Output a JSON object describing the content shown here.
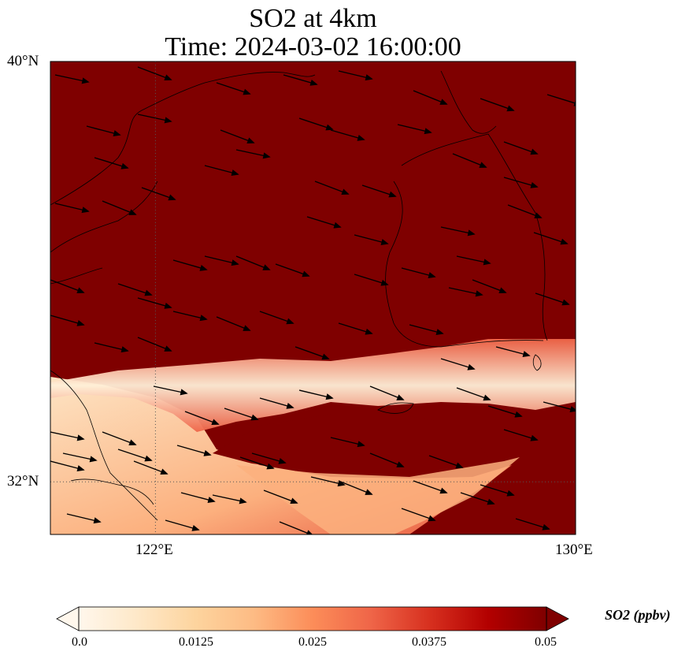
{
  "title": {
    "line1": "SO2 at 4km",
    "line2": "Time: 2024-03-02 16:00:00"
  },
  "map": {
    "extent": {
      "lon_min": 120.0,
      "lon_max": 130.0,
      "lat_min": 31.0,
      "lat_max": 40.0
    },
    "lat_ticks": [
      {
        "value": 40,
        "label": "40°N"
      },
      {
        "value": 32,
        "label": "32°N"
      }
    ],
    "lon_ticks": [
      {
        "value": 122,
        "label": "122°E"
      },
      {
        "value": 130,
        "label": "130°E"
      }
    ],
    "gridlines": {
      "lon": [
        122
      ],
      "lat": [
        32
      ],
      "style": "dotted"
    },
    "field": "SO2",
    "background_value_ppbv": 0.05,
    "plume_description_hidden": false
  },
  "colorbar": {
    "label": "SO2 (ppbv)",
    "min": 0.0,
    "max": 0.05,
    "ticks": [
      "0.0",
      "0.0125",
      "0.025",
      "0.0375",
      "0.05"
    ],
    "extend": "both",
    "colors": [
      "#fff7ec",
      "#fee8c8",
      "#fdd49e",
      "#fdbb84",
      "#fc8d59",
      "#ef6548",
      "#d7301f",
      "#b30000",
      "#7f0000"
    ]
  }
}
